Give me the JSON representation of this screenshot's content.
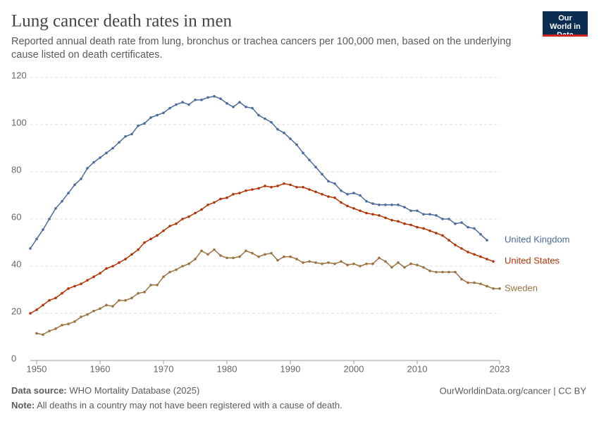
{
  "chart_data": {
    "type": "line",
    "title": "Lung cancer death rates in men",
    "subtitle": "Reported annual death rate from lung, bronchus or trachea cancers per 100,000 men, based on the underlying cause listed on death certificates.",
    "logo": "Our World in Data",
    "x": [
      1949,
      1950,
      1951,
      1952,
      1953,
      1954,
      1955,
      1956,
      1957,
      1958,
      1959,
      1960,
      1961,
      1962,
      1963,
      1964,
      1965,
      1966,
      1967,
      1968,
      1969,
      1970,
      1971,
      1972,
      1973,
      1974,
      1975,
      1976,
      1977,
      1978,
      1979,
      1980,
      1981,
      1982,
      1983,
      1984,
      1985,
      1986,
      1987,
      1988,
      1989,
      1990,
      1991,
      1992,
      1993,
      1994,
      1995,
      1996,
      1997,
      1998,
      1999,
      2000,
      2001,
      2002,
      2003,
      2004,
      2005,
      2006,
      2007,
      2008,
      2009,
      2010,
      2011,
      2012,
      2013,
      2014,
      2015,
      2016,
      2017,
      2018,
      2019,
      2020,
      2021,
      2022,
      2023
    ],
    "series": [
      {
        "name": "United Kingdom",
        "color": "#4c6a9c",
        "values": [
          47.5,
          51.5,
          55.5,
          60,
          64.5,
          67.5,
          71,
          74.5,
          77,
          81.5,
          84,
          86,
          88,
          90,
          92.5,
          95,
          96,
          99.5,
          100.5,
          103,
          104,
          105,
          107,
          108.5,
          109.5,
          108.5,
          110.5,
          110.5,
          111.5,
          112,
          111,
          109,
          107.5,
          109.5,
          107.5,
          107,
          104,
          102.5,
          101,
          98,
          96.5,
          94,
          91.5,
          88,
          85,
          82,
          79,
          76,
          75,
          72,
          70.5,
          71,
          70,
          67.5,
          66.5,
          66,
          66,
          66,
          66,
          65,
          63.5,
          63.5,
          62,
          62,
          61.5,
          60,
          60,
          58,
          58.5,
          56.5,
          56,
          53.5,
          51,
          null,
          null
        ]
      },
      {
        "name": "United States",
        "color": "#b13507",
        "values": [
          20,
          21.5,
          23.5,
          25.5,
          26.5,
          28.5,
          30.5,
          31.5,
          32.5,
          34,
          35.5,
          37,
          39,
          40,
          41.5,
          43,
          45,
          47,
          50,
          51.5,
          53,
          55,
          57,
          58,
          60,
          61,
          62.5,
          64,
          66,
          67,
          68.5,
          69,
          70.5,
          71,
          72,
          72.5,
          73,
          74,
          73.5,
          74,
          75,
          74.5,
          73.5,
          73.5,
          72.5,
          71.5,
          70.5,
          69.5,
          69,
          67,
          65.5,
          64.5,
          63.5,
          62.5,
          62,
          61.5,
          60.5,
          59.5,
          59,
          58,
          57.5,
          56.5,
          56,
          55,
          54,
          53,
          51,
          49,
          47.5,
          46,
          45,
          44,
          43,
          42,
          null
        ]
      },
      {
        "name": "Sweden",
        "color": "#9a7340",
        "values": [
          null,
          11.5,
          11,
          12.5,
          13.5,
          15,
          15.5,
          16.5,
          18.5,
          19.5,
          21,
          22,
          23.5,
          23,
          25.5,
          25.5,
          26.5,
          28.5,
          29,
          32,
          32,
          35.5,
          37.5,
          38.5,
          40,
          41,
          43,
          46.5,
          45,
          47,
          44.5,
          43.5,
          43.5,
          44,
          46.5,
          45.5,
          44,
          45,
          45.5,
          42.5,
          44,
          44,
          43,
          41.5,
          42,
          41.5,
          41,
          41.5,
          41,
          42,
          40.5,
          41,
          40,
          41,
          41,
          43.5,
          42,
          39.5,
          41.5,
          39.5,
          41,
          40.5,
          39.5,
          38,
          37.5,
          37.5,
          37.5,
          37.5,
          34.5,
          33,
          33,
          32.5,
          31.5,
          30.5,
          30.5
        ]
      }
    ],
    "xlim": [
      1949,
      2023
    ],
    "xticks": [
      1950,
      1960,
      1970,
      1980,
      1990,
      2000,
      2010,
      2023
    ],
    "ylim": [
      0,
      120
    ],
    "yticks": [
      0,
      20,
      40,
      60,
      80,
      100,
      120
    ],
    "grid": true,
    "source_label": "Data source:",
    "source": "WHO Mortality Database (2025)",
    "url": "OurWorldinData.org/cancer | CC BY",
    "note_label": "Note:",
    "note": "All deaths in a country may not have been registered with a cause of death."
  }
}
